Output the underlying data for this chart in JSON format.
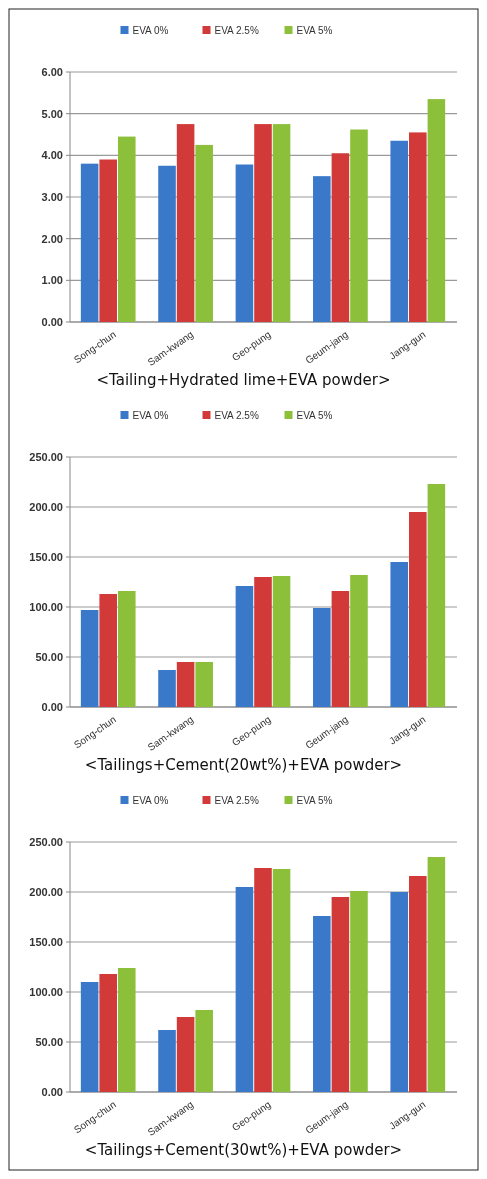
{
  "chart_data": [
    {
      "type": "bar",
      "title": "<Tailing+Hydrated lime+EVA powder>",
      "categories": [
        "Song-chun",
        "Sam-kwang",
        "Geo-pung",
        "Geum-jang",
        "Jang-gun"
      ],
      "series": [
        {
          "name": "EVA 0%",
          "color": "#3a78c9",
          "values": [
            3.8,
            3.75,
            3.78,
            3.5,
            4.35
          ]
        },
        {
          "name": "EVA 2.5%",
          "color": "#d23a3a",
          "values": [
            3.9,
            4.75,
            4.75,
            4.05,
            4.55
          ]
        },
        {
          "name": "EVA 5%",
          "color": "#8dc03a",
          "values": [
            4.45,
            4.25,
            4.75,
            4.62,
            5.35
          ]
        }
      ],
      "ylim": [
        0,
        6
      ],
      "yticks": [
        {
          "value": 0,
          "label": "0.00"
        },
        {
          "value": 1,
          "label": "1.00"
        },
        {
          "value": 2,
          "label": "2.00"
        },
        {
          "value": 3,
          "label": "3.00"
        },
        {
          "value": 4,
          "label": "4.00"
        },
        {
          "value": 5,
          "label": "5.00"
        },
        {
          "value": 6,
          "label": "6.00"
        }
      ],
      "grid": "y",
      "legend": "top"
    },
    {
      "type": "bar",
      "title": "<Tailings+Cement(20wt%)+EVA powder>",
      "categories": [
        "Song-chun",
        "Sam-kwang",
        "Geo-pung",
        "Geum-jang",
        "Jang-gun"
      ],
      "series": [
        {
          "name": "EVA 0%",
          "color": "#3a78c9",
          "values": [
            97,
            37,
            121,
            99,
            145
          ]
        },
        {
          "name": "EVA 2.5%",
          "color": "#d23a3a",
          "values": [
            113,
            45,
            130,
            116,
            195
          ]
        },
        {
          "name": "EVA 5%",
          "color": "#8dc03a",
          "values": [
            116,
            45,
            131,
            132,
            223
          ]
        }
      ],
      "ylim": [
        0,
        250
      ],
      "yticks": [
        {
          "value": 0,
          "label": "0.00"
        },
        {
          "value": 50,
          "label": "50.00"
        },
        {
          "value": 100,
          "label": "100.00"
        },
        {
          "value": 150,
          "label": "150.00"
        },
        {
          "value": 200,
          "label": "200.00"
        },
        {
          "value": 250,
          "label": "250.00"
        }
      ],
      "grid": "y",
      "legend": "top"
    },
    {
      "type": "bar",
      "title": "<Tailings+Cement(30wt%)+EVA powder>",
      "categories": [
        "Song-chun",
        "Sam-kwang",
        "Geo-pung",
        "Geum-jang",
        "Jang-gun"
      ],
      "series": [
        {
          "name": "EVA 0%",
          "color": "#3a78c9",
          "values": [
            110,
            62,
            205,
            176,
            200
          ]
        },
        {
          "name": "EVA 2.5%",
          "color": "#d23a3a",
          "values": [
            118,
            75,
            224,
            195,
            216
          ]
        },
        {
          "name": "EVA 5%",
          "color": "#8dc03a",
          "values": [
            124,
            82,
            223,
            201,
            235
          ]
        }
      ],
      "ylim": [
        0,
        250
      ],
      "yticks": [
        {
          "value": 0,
          "label": "0.00"
        },
        {
          "value": 50,
          "label": "50.00"
        },
        {
          "value": 100,
          "label": "100.00"
        },
        {
          "value": 150,
          "label": "150.00"
        },
        {
          "value": 200,
          "label": "200.00"
        },
        {
          "value": 250,
          "label": "250.00"
        }
      ],
      "grid": "y",
      "legend": "top"
    }
  ]
}
